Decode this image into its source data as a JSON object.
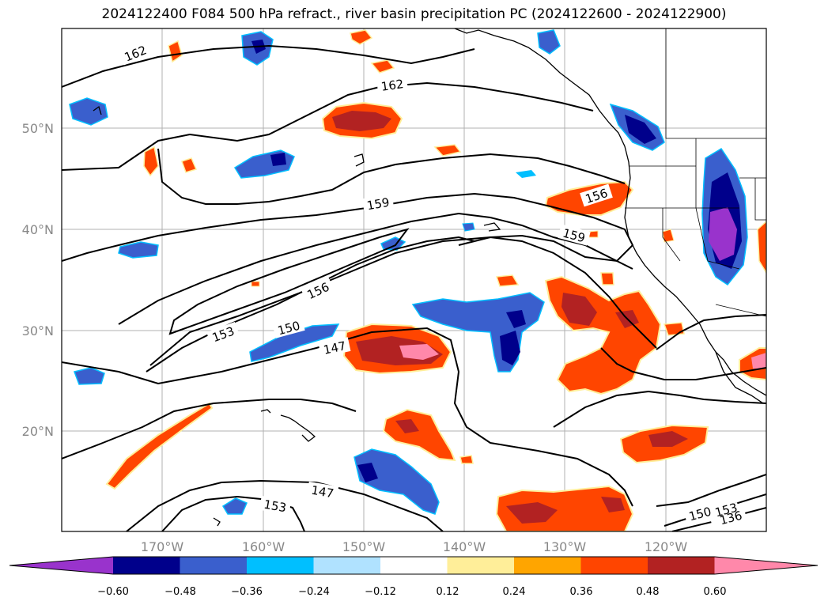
{
  "title": "2024122400 F084 500 hPa refract., river basin precipitation PC (2024122600 - 2024122900)",
  "lat_labels": [
    "50°N",
    "40°N",
    "30°N",
    "20°N"
  ],
  "lon_labels": [
    "170°W",
    "160°W",
    "150°W",
    "140°W",
    "130°W",
    "120°W"
  ],
  "contour_labels": [
    "162",
    "162",
    "159",
    "159",
    "156",
    "156",
    "153",
    "150",
    "147",
    "147",
    "153",
    "150",
    "153",
    "136"
  ],
  "colorbar": {
    "colors": [
      "#9933cc",
      "#00008b",
      "#3a5fcd",
      "#00bfff",
      "#b0e2ff",
      "#ffffff",
      "#ffee99",
      "#ffa500",
      "#ff4500",
      "#b22222",
      "#ff88aa"
    ],
    "ticks": [
      "−0.60",
      "−0.48",
      "−0.36",
      "−0.24",
      "−0.12",
      "0.12",
      "0.24",
      "0.36",
      "0.48",
      "0.60"
    ]
  }
}
